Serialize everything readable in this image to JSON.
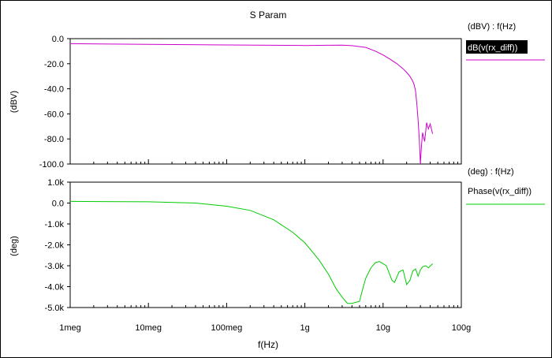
{
  "title": "S Param",
  "xlabel": "f(Hz)",
  "x_ticks": [
    "1meg",
    "10meg",
    "100meg",
    "1g",
    "10g",
    "100g"
  ],
  "colors": {
    "magnitude": "#cc00cc",
    "phase": "#00cc00",
    "frame": "#000000"
  },
  "chart_data": [
    {
      "type": "line",
      "title": "S Param",
      "xlabel": "f(Hz)",
      "ylabel": "(dBV)",
      "x_scale": "log",
      "xlim": [
        "1meg",
        "100g"
      ],
      "ylim": [
        -100,
        0
      ],
      "y_ticks": [
        "0.0",
        "-20.0",
        "-40.0",
        "-60.0",
        "-80.0",
        "-100.0"
      ],
      "legend_axis_label": "(dBV) : f(Hz)",
      "series": [
        {
          "name": "dB(v(rx_diff))",
          "x": [
            "1meg",
            "10meg",
            "100meg",
            "1g",
            "2g",
            "3g",
            "4g",
            "6g",
            "8g",
            "10g",
            "12g",
            "15g",
            "18g",
            "20g",
            "22g",
            "24g",
            "25g",
            "26g",
            "27g",
            "28g",
            "29g",
            "30g",
            "31g",
            "32g",
            "34g",
            "36g",
            "38g",
            "40g",
            "43g"
          ],
          "values": [
            -4.0,
            -4.5,
            -5.0,
            -5.5,
            -5.3,
            -5.2,
            -5.6,
            -7.0,
            -10.0,
            -13.0,
            -16.0,
            -20.0,
            -24.0,
            -27.0,
            -30.0,
            -34.0,
            -37.0,
            -42.0,
            -52.0,
            -65.0,
            -80.0,
            -100.0,
            -85.0,
            -75.0,
            -82.0,
            -67.0,
            -72.0,
            -68.0,
            -76.0
          ]
        }
      ]
    },
    {
      "type": "line",
      "ylabel": "(deg)",
      "x_scale": "log",
      "xlim": [
        "1meg",
        "100g"
      ],
      "ylim": [
        -5000,
        1000
      ],
      "y_ticks": [
        "1.0k",
        "0.0",
        "-1.0k",
        "-2.0k",
        "-3.0k",
        "-4.0k",
        "-5.0k"
      ],
      "legend_axis_label": "(deg) : f(Hz)",
      "series": [
        {
          "name": "Phase(v(rx_diff))",
          "x": [
            "1meg",
            "10meg",
            "40meg",
            "100meg",
            "200meg",
            "400meg",
            "700meg",
            "1g",
            "1.5g",
            "2g",
            "2.5g",
            "3g",
            "3.5g",
            "4g",
            "5g",
            "5.5g",
            "6g",
            "7g",
            "8g",
            "9g",
            "11g",
            "13g",
            "14g",
            "16g",
            "18g",
            "20g",
            "22g",
            "24g",
            "26g",
            "28g",
            "30g",
            "32g",
            "35g",
            "38g",
            "43g"
          ],
          "values": [
            80,
            60,
            0,
            -150,
            -350,
            -800,
            -1400,
            -1900,
            -2700,
            -3400,
            -4100,
            -4500,
            -4800,
            -4800,
            -4700,
            -4100,
            -3600,
            -3100,
            -2850,
            -2800,
            -3000,
            -3700,
            -3800,
            -3300,
            -3200,
            -3900,
            -3700,
            -3250,
            -3150,
            -3500,
            -3200,
            -3050,
            -3000,
            -3100,
            -2900
          ]
        }
      ]
    }
  ]
}
